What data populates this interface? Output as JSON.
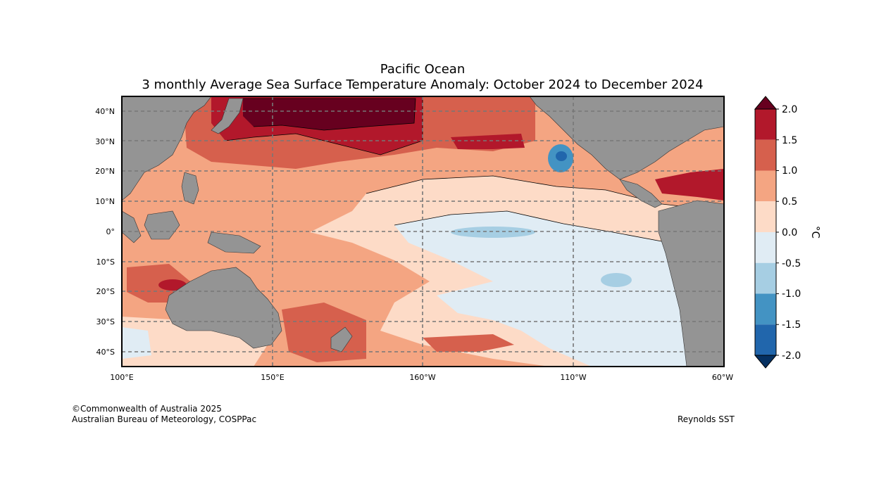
{
  "title": "Pacific Ocean",
  "subtitle": "3 monthly Average Sea Surface Temperature Anomaly: October 2024 to December 2024",
  "map": {
    "lat_ticks": [
      "40°N",
      "30°N",
      "20°N",
      "10°N",
      "0°",
      "10°S",
      "20°S",
      "30°S",
      "40°S"
    ],
    "lon_ticks": [
      "100°E",
      "150°E",
      "160°W",
      "110°W",
      "60°W"
    ],
    "land_color": "#949494"
  },
  "colorbar": {
    "unit": "°C",
    "ticks": [
      "2.0",
      "1.5",
      "1.0",
      "0.5",
      "0.0",
      "-0.5",
      "-1.0",
      "-1.5",
      "-2.0"
    ],
    "colors": [
      "#67001f",
      "#b2182b",
      "#d6604d",
      "#f4a582",
      "#fddbc7",
      "#e0ecf4",
      "#a6cee3",
      "#4393c3",
      "#2166ac",
      "#053061"
    ]
  },
  "footer": {
    "copyright": "©Commonwealth of Australia 2025",
    "agency": "Australian Bureau of Meteorology, COSPPac",
    "source": "Reynolds SST"
  }
}
